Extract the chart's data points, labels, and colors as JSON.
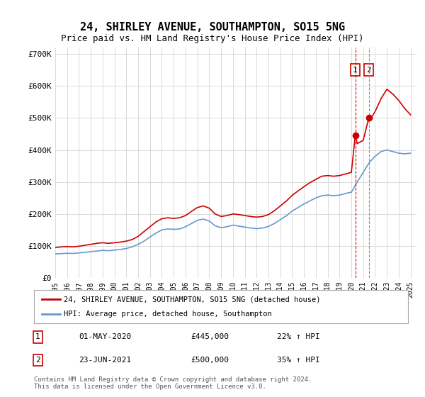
{
  "title": "24, SHIRLEY AVENUE, SOUTHAMPTON, SO15 5NG",
  "subtitle": "Price paid vs. HM Land Registry's House Price Index (HPI)",
  "ylabel_ticks": [
    "£0",
    "£100K",
    "£200K",
    "£300K",
    "£400K",
    "£500K",
    "£600K",
    "£700K"
  ],
  "ylim": [
    0,
    720000
  ],
  "xlim_start": 1995,
  "xlim_end": 2025.5,
  "x_ticks": [
    1995,
    1996,
    1997,
    1998,
    1999,
    2000,
    2001,
    2002,
    2003,
    2004,
    2005,
    2006,
    2007,
    2008,
    2009,
    2010,
    2011,
    2012,
    2013,
    2014,
    2015,
    2016,
    2017,
    2018,
    2019,
    2020,
    2021,
    2022,
    2023,
    2024,
    2025
  ],
  "line1_color": "#cc0000",
  "line2_color": "#6699cc",
  "line1_label": "24, SHIRLEY AVENUE, SOUTHAMPTON, SO15 5NG (detached house)",
  "line2_label": "HPI: Average price, detached house, Southampton",
  "transaction1_x": 2020.33,
  "transaction1_y": 445000,
  "transaction1_label": "1",
  "transaction1_date": "01-MAY-2020",
  "transaction1_price": "£445,000",
  "transaction1_hpi": "22% ↑ HPI",
  "transaction2_x": 2021.47,
  "transaction2_y": 500000,
  "transaction2_label": "2",
  "transaction2_date": "23-JUN-2021",
  "transaction2_price": "£500,000",
  "transaction2_hpi": "35% ↑ HPI",
  "footer": "Contains HM Land Registry data © Crown copyright and database right 2024.\nThis data is licensed under the Open Government Licence v3.0.",
  "bg_color": "#ffffff",
  "grid_color": "#cccccc",
  "legend1_line": [
    [
      1995.0,
      95000
    ],
    [
      1995.5,
      97000
    ],
    [
      1996.0,
      98000
    ],
    [
      1996.5,
      97000
    ],
    [
      1997.0,
      99000
    ],
    [
      1997.5,
      102000
    ],
    [
      1998.0,
      105000
    ],
    [
      1998.5,
      108000
    ],
    [
      1999.0,
      110000
    ],
    [
      1999.5,
      108000
    ],
    [
      2000.0,
      110000
    ],
    [
      2000.5,
      112000
    ],
    [
      2001.0,
      115000
    ],
    [
      2001.5,
      120000
    ],
    [
      2002.0,
      130000
    ],
    [
      2002.5,
      145000
    ],
    [
      2003.0,
      160000
    ],
    [
      2003.5,
      175000
    ],
    [
      2004.0,
      185000
    ],
    [
      2004.5,
      188000
    ],
    [
      2005.0,
      186000
    ],
    [
      2005.5,
      188000
    ],
    [
      2006.0,
      195000
    ],
    [
      2006.5,
      208000
    ],
    [
      2007.0,
      220000
    ],
    [
      2007.5,
      225000
    ],
    [
      2008.0,
      218000
    ],
    [
      2008.5,
      200000
    ],
    [
      2009.0,
      192000
    ],
    [
      2009.5,
      195000
    ],
    [
      2010.0,
      200000
    ],
    [
      2010.5,
      198000
    ],
    [
      2011.0,
      195000
    ],
    [
      2011.5,
      192000
    ],
    [
      2012.0,
      190000
    ],
    [
      2012.5,
      192000
    ],
    [
      2013.0,
      198000
    ],
    [
      2013.5,
      210000
    ],
    [
      2014.0,
      225000
    ],
    [
      2014.5,
      240000
    ],
    [
      2015.0,
      258000
    ],
    [
      2015.5,
      272000
    ],
    [
      2016.0,
      285000
    ],
    [
      2016.5,
      298000
    ],
    [
      2017.0,
      308000
    ],
    [
      2017.5,
      318000
    ],
    [
      2018.0,
      320000
    ],
    [
      2018.5,
      318000
    ],
    [
      2019.0,
      320000
    ],
    [
      2019.5,
      325000
    ],
    [
      2020.0,
      330000
    ],
    [
      2020.33,
      445000
    ],
    [
      2020.5,
      420000
    ],
    [
      2021.0,
      430000
    ],
    [
      2021.47,
      500000
    ],
    [
      2021.5,
      490000
    ],
    [
      2022.0,
      520000
    ],
    [
      2022.5,
      560000
    ],
    [
      2023.0,
      590000
    ],
    [
      2023.5,
      575000
    ],
    [
      2024.0,
      555000
    ],
    [
      2024.5,
      530000
    ],
    [
      2025.0,
      510000
    ]
  ],
  "legend2_line": [
    [
      1995.0,
      75000
    ],
    [
      1995.5,
      76000
    ],
    [
      1996.0,
      77000
    ],
    [
      1996.5,
      76500
    ],
    [
      1997.0,
      78000
    ],
    [
      1997.5,
      80000
    ],
    [
      1998.0,
      82000
    ],
    [
      1998.5,
      84000
    ],
    [
      1999.0,
      86000
    ],
    [
      1999.5,
      85000
    ],
    [
      2000.0,
      87000
    ],
    [
      2000.5,
      89000
    ],
    [
      2001.0,
      92000
    ],
    [
      2001.5,
      97000
    ],
    [
      2002.0,
      105000
    ],
    [
      2002.5,
      115000
    ],
    [
      2003.0,
      128000
    ],
    [
      2003.5,
      140000
    ],
    [
      2004.0,
      150000
    ],
    [
      2004.5,
      153000
    ],
    [
      2005.0,
      152000
    ],
    [
      2005.5,
      153000
    ],
    [
      2006.0,
      160000
    ],
    [
      2006.5,
      170000
    ],
    [
      2007.0,
      180000
    ],
    [
      2007.5,
      184000
    ],
    [
      2008.0,
      178000
    ],
    [
      2008.5,
      163000
    ],
    [
      2009.0,
      157000
    ],
    [
      2009.5,
      160000
    ],
    [
      2010.0,
      165000
    ],
    [
      2010.5,
      162000
    ],
    [
      2011.0,
      159000
    ],
    [
      2011.5,
      156000
    ],
    [
      2012.0,
      154000
    ],
    [
      2012.5,
      156000
    ],
    [
      2013.0,
      161000
    ],
    [
      2013.5,
      170000
    ],
    [
      2014.0,
      182000
    ],
    [
      2014.5,
      194000
    ],
    [
      2015.0,
      209000
    ],
    [
      2015.5,
      220000
    ],
    [
      2016.0,
      231000
    ],
    [
      2016.5,
      241000
    ],
    [
      2017.0,
      250000
    ],
    [
      2017.5,
      257000
    ],
    [
      2018.0,
      259000
    ],
    [
      2018.5,
      257000
    ],
    [
      2019.0,
      259000
    ],
    [
      2019.5,
      264000
    ],
    [
      2020.0,
      268000
    ],
    [
      2020.5,
      300000
    ],
    [
      2021.0,
      330000
    ],
    [
      2021.5,
      360000
    ],
    [
      2022.0,
      380000
    ],
    [
      2022.5,
      395000
    ],
    [
      2023.0,
      400000
    ],
    [
      2023.5,
      395000
    ],
    [
      2024.0,
      390000
    ],
    [
      2024.5,
      388000
    ],
    [
      2025.0,
      390000
    ]
  ]
}
